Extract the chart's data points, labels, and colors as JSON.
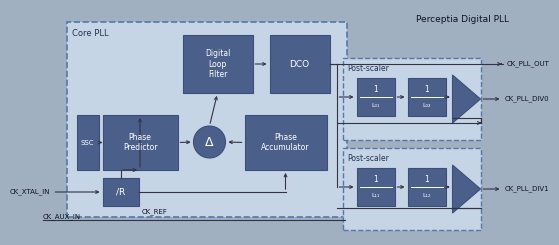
{
  "bg_color": "#a0b0c0",
  "core_pll_bg": "#c5d5e5",
  "box_color": "#4a5f8a",
  "box_edge": "#3a4f7a",
  "ps_bg": "#c5d5e5",
  "ac": "#333344",
  "title": "Perceptia Digital PLL",
  "core_pll_label": "Core PLL",
  "post_scaler_label": "Post-scaler",
  "ck_pll_out": "CK_PLL_OUT",
  "ck_pll_div0": "CK_PLL_DIV0",
  "ck_pll_div1": "CK_PLL_DIV1",
  "ck_xtal_in": "CK_XTAL_IN",
  "ck_ref": "CK_REF",
  "ck_aux_in": "CK_AUX_IN",
  "dlf_label": "Digital\nLoop\nFilter",
  "dco_label": "DCO",
  "pp_label": "Phase\nPredictor",
  "delta_label": "Δ",
  "pa_label": "Phase\nAccumulator",
  "ssc_label": "SSC",
  "divr_label": "/R"
}
